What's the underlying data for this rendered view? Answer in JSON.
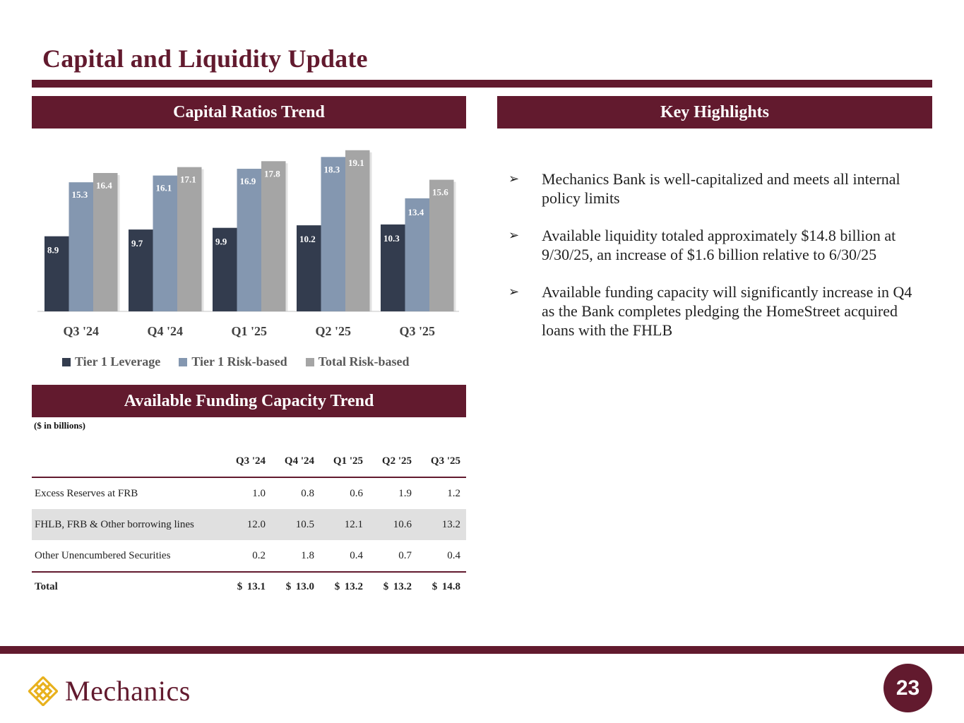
{
  "title": "Capital and Liquidity Update",
  "sections": {
    "capital_ratios": "Capital Ratios Trend",
    "key_highlights": "Key Highlights",
    "funding_capacity": "Available Funding Capacity Trend"
  },
  "colors": {
    "brand": "#621a2e",
    "tier1_leverage": "#333c4e",
    "tier1_risk_based": "#8497b0",
    "total_risk_based": "#a5a5a5"
  },
  "chart_data": {
    "type": "bar",
    "title": "Capital Ratios Trend",
    "categories": [
      "Q3 '24",
      "Q4 '24",
      "Q1 '25",
      "Q2 '25",
      "Q3 '25"
    ],
    "series": [
      {
        "name": "Tier 1 Leverage",
        "values": [
          8.9,
          9.7,
          9.9,
          10.2,
          10.3
        ]
      },
      {
        "name": "Tier 1 Risk-based",
        "values": [
          15.3,
          16.1,
          16.9,
          18.3,
          13.4
        ]
      },
      {
        "name": "Total Risk-based",
        "values": [
          16.4,
          17.1,
          17.8,
          19.1,
          15.6
        ]
      }
    ],
    "ylim": [
      0,
      20
    ],
    "grid": false,
    "legend": "bottom",
    "xlabel": "",
    "ylabel": ""
  },
  "legend": {
    "items": [
      "Tier 1 Leverage",
      "Tier 1 Risk-based",
      "Total Risk-based"
    ]
  },
  "funding_table": {
    "units": "($ in billions)",
    "columns": [
      "Q3 '24",
      "Q4 '24",
      "Q1 '25",
      "Q2 '25",
      "Q3 '25"
    ],
    "rows": [
      {
        "label": "Excess Reserves at FRB",
        "values": [
          "1.0",
          "0.8",
          "0.6",
          "1.9",
          "1.2"
        ]
      },
      {
        "label": "FHLB, FRB & Other borrowing lines",
        "values": [
          "12.0",
          "10.5",
          "12.1",
          "10.6",
          "13.2"
        ]
      },
      {
        "label": "Other Unencumbered Securities",
        "values": [
          "0.2",
          "1.8",
          "0.4",
          "0.7",
          "0.4"
        ]
      }
    ],
    "total": {
      "label": "Total",
      "currency": "$",
      "values": [
        "13.1",
        "13.0",
        "13.2",
        "13.2",
        "14.8"
      ]
    }
  },
  "highlights": [
    "Mechanics Bank is well-capitalized and meets all internal policy limits",
    "Available liquidity totaled approximately $14.8 billion at 9/30/25, an increase of $1.6 billion relative to 6/30/25",
    "Available funding capacity will significantly increase in Q4 as the Bank completes pledging the HomeStreet acquired loans with the FHLB"
  ],
  "bullet_glyph": "➢",
  "footer": {
    "logo_text": "Mechanics",
    "page_number": "23"
  }
}
